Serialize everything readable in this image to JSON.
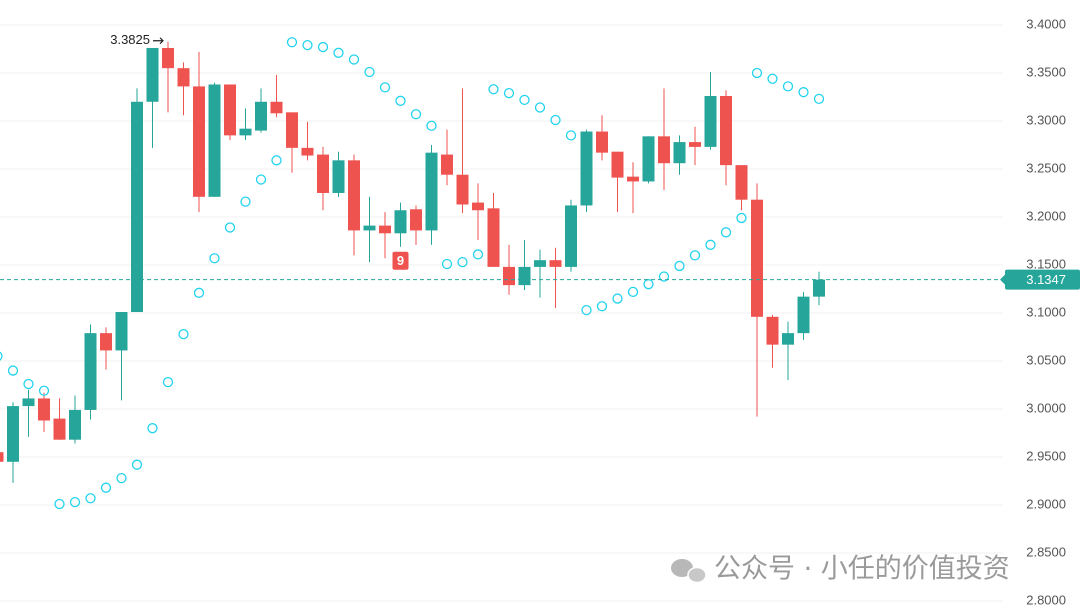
{
  "chart_data": {
    "type": "candlestick",
    "open": [
      2.955,
      2.945,
      3.003,
      3.011,
      2.99,
      2.968,
      2.999,
      3.079,
      3.061,
      3.101,
      3.32,
      3.376,
      3.355,
      3.336,
      3.221,
      3.338,
      3.285,
      3.29,
      3.32,
      3.309,
      3.272,
      3.265,
      3.225,
      3.259,
      3.186,
      3.191,
      3.183,
      3.208,
      3.186,
      3.265,
      3.244,
      3.215,
      3.209,
      3.148,
      3.129,
      3.148,
      3.155,
      3.148,
      3.212,
      3.289,
      3.268,
      3.242,
      3.237,
      3.284,
      3.256,
      3.278,
      3.273,
      3.326,
      3.254,
      3.218,
      3.096,
      3.067,
      3.079,
      3.117
    ],
    "high": [
      2.957,
      3.007,
      3.02,
      3.017,
      3.011,
      3.014,
      3.088,
      3.085,
      3.101,
      3.334,
      3.376,
      3.3825,
      3.361,
      3.372,
      3.34,
      3.338,
      3.313,
      3.334,
      3.348,
      3.309,
      3.299,
      3.273,
      3.268,
      3.265,
      3.221,
      3.205,
      3.215,
      3.212,
      3.275,
      3.291,
      3.334,
      3.235,
      3.225,
      3.171,
      3.176,
      3.166,
      3.168,
      3.218,
      3.291,
      3.306,
      3.268,
      3.257,
      3.284,
      3.334,
      3.285,
      3.294,
      3.351,
      3.332,
      3.254,
      3.235,
      3.098,
      3.091,
      3.122,
      3.143
    ],
    "low": [
      2.944,
      2.923,
      2.971,
      2.976,
      2.968,
      2.964,
      2.989,
      3.041,
      3.009,
      3.101,
      3.272,
      3.309,
      3.306,
      3.205,
      3.221,
      3.28,
      3.28,
      3.288,
      3.304,
      3.246,
      3.259,
      3.207,
      3.221,
      3.16,
      3.153,
      3.157,
      3.169,
      3.171,
      3.171,
      3.233,
      3.204,
      3.176,
      3.148,
      3.119,
      3.124,
      3.116,
      3.105,
      3.143,
      3.205,
      3.259,
      3.205,
      3.204,
      3.235,
      3.228,
      3.244,
      3.254,
      3.27,
      3.233,
      3.207,
      2.992,
      3.043,
      3.03,
      3.072,
      3.108
    ],
    "close": [
      2.945,
      3.003,
      3.011,
      2.988,
      2.968,
      2.999,
      3.079,
      3.061,
      3.101,
      3.32,
      3.376,
      3.355,
      3.336,
      3.221,
      3.338,
      3.285,
      3.292,
      3.32,
      3.308,
      3.272,
      3.264,
      3.225,
      3.259,
      3.186,
      3.191,
      3.183,
      3.207,
      3.186,
      3.267,
      3.244,
      3.213,
      3.207,
      3.148,
      3.129,
      3.148,
      3.155,
      3.148,
      3.212,
      3.289,
      3.267,
      3.241,
      3.237,
      3.284,
      3.256,
      3.278,
      3.273,
      3.326,
      3.254,
      3.218,
      3.096,
      3.067,
      3.079,
      3.117,
      3.1347
    ],
    "sar": [
      3.055,
      3.04,
      3.026,
      3.019,
      2.901,
      2.903,
      2.907,
      2.918,
      2.928,
      2.942,
      2.98,
      3.028,
      3.078,
      3.121,
      3.157,
      3.189,
      3.216,
      3.239,
      3.259,
      3.382,
      3.379,
      3.377,
      3.371,
      3.364,
      3.351,
      3.335,
      3.321,
      3.307,
      3.295,
      3.151,
      3.153,
      3.161,
      3.333,
      3.329,
      3.322,
      3.314,
      3.301,
      3.285,
      3.103,
      3.107,
      3.115,
      3.122,
      3.13,
      3.138,
      3.149,
      3.16,
      3.171,
      3.184,
      3.199,
      3.35,
      3.344,
      3.336,
      3.33,
      3.323
    ],
    "up_color": "#26a69a",
    "down_color": "#ef5350",
    "sar_color": "#22d3ee",
    "ylim": [
      2.7875,
      3.426
    ],
    "yticks": [
      {
        "value": 3.4,
        "label": "3.4000"
      },
      {
        "value": 3.35,
        "label": "3.3500"
      },
      {
        "value": 3.3,
        "label": "3.3000"
      },
      {
        "value": 3.25,
        "label": "3.2500"
      },
      {
        "value": 3.2,
        "label": "3.2000"
      },
      {
        "value": 3.15,
        "label": "3.1500"
      },
      {
        "value": 3.1,
        "label": "3.1000"
      },
      {
        "value": 3.05,
        "label": "3.0500"
      },
      {
        "value": 3.0,
        "label": "3.0000"
      },
      {
        "value": 2.95,
        "label": "2.9500"
      },
      {
        "value": 2.9,
        "label": "2.9000"
      },
      {
        "value": 2.85,
        "label": "2.8500"
      },
      {
        "value": 2.8,
        "label": "2.8000"
      }
    ],
    "grid": true,
    "last_price": 3.1347,
    "marker_label": "9",
    "watermark": "公众号 · 小任的价值投资"
  }
}
